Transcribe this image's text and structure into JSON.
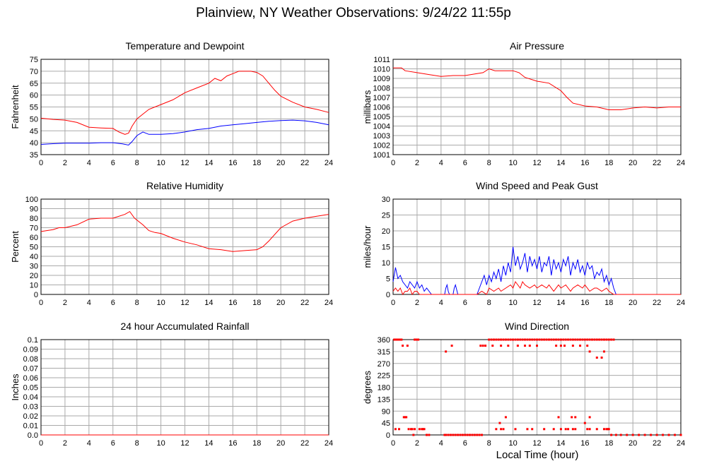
{
  "title": "Plainview, NY Weather Observations: 9/24/22 11:55p",
  "xlabel": "Local Time (hour)",
  "colors": {
    "red": "#ff0000",
    "blue": "#0000ff",
    "grid": "#aaaaaa"
  },
  "chart_data": [
    {
      "type": "line",
      "title": "Temperature and Dewpoint",
      "ylabel": "Fahrenheit",
      "xlim": [
        0,
        24
      ],
      "ylim": [
        35,
        75
      ],
      "xticks": [
        0,
        2,
        4,
        6,
        8,
        10,
        12,
        14,
        16,
        18,
        20,
        22,
        24
      ],
      "yticks": [
        35,
        40,
        45,
        50,
        55,
        60,
        65,
        70,
        75
      ],
      "grid": true,
      "series": [
        {
          "color": "#ff0000",
          "x": [
            0,
            1,
            2,
            3,
            4,
            5,
            6,
            6.5,
            7,
            7.3,
            7.6,
            8,
            8.5,
            9,
            9.5,
            10,
            11,
            12,
            13,
            14,
            14.5,
            15,
            15.5,
            16,
            16.5,
            17,
            17.5,
            18,
            18.5,
            19,
            19.5,
            20,
            21,
            22,
            23,
            24
          ],
          "y": [
            50.3,
            49.8,
            49.5,
            48.5,
            46.5,
            46.2,
            46,
            44.5,
            43.5,
            44,
            47,
            50,
            52,
            54,
            55,
            56,
            58,
            61,
            63,
            65,
            67,
            66,
            68,
            69,
            70,
            70,
            70,
            69.5,
            68,
            65,
            62,
            59.5,
            57,
            55,
            54,
            52.7
          ]
        },
        {
          "color": "#0000ff",
          "x": [
            0,
            1,
            2,
            3,
            4,
            5,
            6,
            6.8,
            7.3,
            7.6,
            8,
            8.5,
            9,
            10,
            11,
            12,
            13,
            14,
            15,
            16,
            17,
            18,
            19,
            20,
            21,
            22,
            23,
            24
          ],
          "y": [
            39.3,
            39.6,
            39.8,
            39.8,
            39.8,
            40,
            40,
            39.5,
            39,
            40.5,
            43,
            44.5,
            43.5,
            43.5,
            43.8,
            44.5,
            45.5,
            46,
            47,
            47.5,
            48,
            48.5,
            49,
            49.3,
            49.5,
            49.2,
            48.5,
            47.5
          ]
        }
      ]
    },
    {
      "type": "line",
      "title": "Air Pressure",
      "ylabel": "millibars",
      "xlim": [
        0,
        24
      ],
      "ylim": [
        1001,
        1011
      ],
      "xticks": [
        0,
        2,
        4,
        6,
        8,
        10,
        12,
        14,
        16,
        18,
        20,
        22,
        24
      ],
      "yticks": [
        1001,
        1002,
        1003,
        1004,
        1005,
        1006,
        1007,
        1008,
        1009,
        1010,
        1011
      ],
      "grid": true,
      "series": [
        {
          "color": "#ff0000",
          "x": [
            0,
            0.7,
            1,
            2,
            3,
            4,
            5,
            6,
            7,
            7.5,
            8,
            8.5,
            9,
            10,
            10.5,
            11,
            12,
            13,
            14,
            14.5,
            15,
            16,
            17,
            18,
            19,
            20,
            21,
            22,
            23,
            24
          ],
          "y": [
            1010.1,
            1010.1,
            1009.8,
            1009.6,
            1009.4,
            1009.2,
            1009.3,
            1009.3,
            1009.5,
            1009.6,
            1010,
            1009.8,
            1009.8,
            1009.8,
            1009.6,
            1009.1,
            1008.7,
            1008.5,
            1007.7,
            1007,
            1006.4,
            1006.1,
            1006,
            1005.7,
            1005.7,
            1005.9,
            1006,
            1005.9,
            1006,
            1006
          ]
        }
      ]
    },
    {
      "type": "line",
      "title": "Relative Humidity",
      "ylabel": "Percent",
      "xlim": [
        0,
        24
      ],
      "ylim": [
        0,
        100
      ],
      "xticks": [
        0,
        2,
        4,
        6,
        8,
        10,
        12,
        14,
        16,
        18,
        20,
        22,
        24
      ],
      "yticks": [
        0,
        10,
        20,
        30,
        40,
        50,
        60,
        70,
        80,
        90,
        100
      ],
      "grid": true,
      "series": [
        {
          "color": "#ff0000",
          "x": [
            0,
            1,
            1.5,
            2,
            3,
            4,
            5,
            6,
            7,
            7.4,
            7.8,
            8.5,
            9,
            9.5,
            10,
            11,
            12,
            13,
            14,
            15,
            16,
            17,
            18,
            18.5,
            19,
            20,
            21,
            22,
            23,
            24
          ],
          "y": [
            66,
            68,
            70,
            70,
            73,
            79,
            80,
            80,
            84,
            87,
            80,
            73,
            67,
            65,
            64,
            59,
            55,
            52,
            48,
            47,
            45,
            46,
            47,
            50,
            56,
            70,
            77,
            80,
            82,
            84
          ]
        }
      ]
    },
    {
      "type": "line",
      "title": "Wind Speed and Peak Gust",
      "ylabel": "miles/hour",
      "xlim": [
        0,
        24
      ],
      "ylim": [
        0,
        30
      ],
      "xticks": [
        0,
        2,
        4,
        6,
        8,
        10,
        12,
        14,
        16,
        18,
        20,
        22,
        24
      ],
      "yticks": [
        0,
        5,
        10,
        15,
        20,
        25,
        30
      ],
      "grid": true,
      "series": [
        {
          "color": "#0000ff",
          "x": [
            0,
            0.2,
            0.4,
            0.6,
            0.8,
            1,
            1.2,
            1.4,
            1.6,
            1.8,
            2,
            2.2,
            2.4,
            2.6,
            2.8,
            3,
            3.2,
            4.3,
            4.4,
            4.5,
            4.6,
            4.7,
            5,
            5.1,
            5.2,
            5.4,
            7,
            7.2,
            7.4,
            7.6,
            7.8,
            8,
            8.2,
            8.4,
            8.6,
            8.8,
            9,
            9.2,
            9.4,
            9.6,
            9.8,
            10,
            10.2,
            10.4,
            10.6,
            10.8,
            11,
            11.2,
            11.4,
            11.6,
            11.8,
            12,
            12.2,
            12.4,
            12.6,
            12.8,
            13,
            13.2,
            13.4,
            13.6,
            13.8,
            14,
            14.2,
            14.4,
            14.6,
            14.8,
            15,
            15.2,
            15.4,
            15.6,
            15.8,
            16,
            16.2,
            16.4,
            16.6,
            16.8,
            17,
            17.2,
            17.4,
            17.6,
            17.8,
            18,
            18.2,
            18.4,
            18.6,
            24
          ],
          "y": [
            4,
            8.5,
            5,
            6,
            4,
            3,
            2,
            4,
            3,
            2,
            4,
            2,
            3,
            1,
            2,
            1,
            0,
            0,
            2,
            3,
            1,
            0,
            0,
            2,
            3,
            0,
            0,
            2,
            4,
            6,
            3,
            6,
            4,
            7,
            5,
            8,
            4,
            9,
            6,
            10,
            7,
            15,
            9,
            12,
            8,
            10,
            13,
            7,
            12,
            9,
            11,
            8,
            12,
            7,
            10,
            9,
            12,
            6,
            11,
            8,
            10,
            7,
            11,
            9,
            12,
            6,
            10,
            8,
            11,
            7,
            9,
            6,
            10,
            8,
            9,
            5,
            7,
            6,
            8,
            4,
            6,
            3,
            5,
            2,
            0,
            0
          ]
        },
        {
          "color": "#ff0000",
          "x": [
            0,
            0.2,
            0.4,
            0.6,
            0.8,
            1,
            1.2,
            1.4,
            1.6,
            1.8,
            2,
            2.2,
            2.4,
            3,
            7,
            7.4,
            7.8,
            8,
            8.4,
            8.8,
            9,
            9.4,
            9.8,
            10,
            10.2,
            10.4,
            10.6,
            10.8,
            11,
            11.4,
            11.8,
            12,
            12.4,
            12.8,
            13,
            13.4,
            13.8,
            14,
            14.4,
            14.8,
            15,
            15.4,
            15.8,
            16,
            16.4,
            16.8,
            17,
            17.4,
            17.8,
            18,
            18.4,
            24
          ],
          "y": [
            1,
            2,
            1,
            2,
            0,
            1,
            1,
            2,
            0,
            1,
            1,
            0,
            0,
            0,
            0,
            1,
            0,
            2,
            1,
            2,
            1,
            2,
            3,
            2,
            4,
            3,
            2,
            4,
            3,
            2,
            3,
            2,
            3,
            2,
            3,
            1,
            3,
            2,
            3,
            1,
            2,
            3,
            2,
            3,
            1,
            2,
            2,
            1,
            2,
            1,
            0,
            0
          ]
        }
      ]
    },
    {
      "type": "line",
      "title": "24 hour Accumulated Rainfall",
      "ylabel": "Inches",
      "xlim": [
        0,
        24
      ],
      "ylim": [
        0,
        0.1
      ],
      "xticks": [
        0,
        2,
        4,
        6,
        8,
        10,
        12,
        14,
        16,
        18,
        20,
        22,
        24
      ],
      "yticks": [
        "0.0",
        "0.01",
        "0.02",
        "0.03",
        "0.04",
        "0.05",
        "0.06",
        "0.07",
        "0.08",
        "0.09",
        "0.1"
      ],
      "grid": true,
      "series": [
        {
          "color": "#ff0000",
          "x": [
            0,
            24
          ],
          "y": [
            0,
            0
          ]
        }
      ]
    },
    {
      "type": "scatter",
      "title": "Wind Direction",
      "ylabel": "degrees",
      "xlim": [
        0,
        24
      ],
      "ylim": [
        0,
        360
      ],
      "xticks": [
        0,
        2,
        4,
        6,
        8,
        10,
        12,
        14,
        16,
        18,
        20,
        22,
        24
      ],
      "yticks": [
        0,
        45,
        90,
        135,
        180,
        225,
        270,
        315,
        360
      ],
      "grid": true,
      "series": [
        {
          "color": "#ff0000",
          "x": [
            0.1,
            0.2,
            0.3,
            0.4,
            0.5,
            0.6,
            0.7,
            0.2,
            0.5,
            0.9,
            1.0,
            1.1,
            0.8,
            1.2,
            1.3,
            1.5,
            1.7,
            1.8,
            1.9,
            2.0,
            2.1,
            1.6,
            1.8,
            2.2,
            2.4,
            2.5,
            2.6,
            2.8,
            3.0,
            4.3,
            4.4,
            4.6,
            4.8,
            5.0,
            5.2,
            5.4,
            5.6,
            5.8,
            6.0,
            6.2,
            6.4,
            6.6,
            6.8,
            7.0,
            7.2,
            7.4,
            7.3,
            7.5,
            7.7,
            8.0,
            8.2,
            8.4,
            8.6,
            8.8,
            9.0,
            9.2,
            9.4,
            9.6,
            9.8,
            10.0,
            10.2,
            10.4,
            10.6,
            10.8,
            11.0,
            11.2,
            11.4,
            11.6,
            11.8,
            12.0,
            12.2,
            12.4,
            12.6,
            12.8,
            13.0,
            13.2,
            13.4,
            13.6,
            13.8,
            14.0,
            14.2,
            14.4,
            14.6,
            14.8,
            15.0,
            15.2,
            15.4,
            15.6,
            15.8,
            16.0,
            16.2,
            16.4,
            16.6,
            16.8,
            17.0,
            17.2,
            17.4,
            17.6,
            17.8,
            18.0,
            18.2,
            18.4,
            4.4,
            4.9,
            8.3,
            9.0,
            9.2,
            9.6,
            10.4,
            11.0,
            11.4,
            12.0,
            13.6,
            14.0,
            14.3,
            15.0,
            15.6,
            16.2,
            16.4,
            17.0,
            17.4,
            17.6,
            17.8,
            8.6,
            9.0,
            9.2,
            10.2,
            11.2,
            11.6,
            12.6,
            13.4,
            14.0,
            14.4,
            14.6,
            15.0,
            15.2,
            16.2,
            16.4,
            17.0,
            17.6,
            17.9,
            18.0,
            18.2,
            18.6,
            19.0,
            19.5,
            20.0,
            20.5,
            21.0,
            21.5,
            22.0,
            22.5,
            23.0,
            23.5,
            24.0,
            9.4,
            13.8,
            14.9,
            15.2,
            16.4,
            8.9,
            16.0
          ],
          "y": [
            360,
            360,
            360,
            360,
            360,
            360,
            360,
            22,
            22,
            67,
            67,
            67,
            337,
            337,
            22,
            22,
            0,
            360,
            360,
            360,
            360,
            22,
            22,
            22,
            22,
            22,
            22,
            0,
            0,
            0,
            0,
            0,
            0,
            0,
            0,
            0,
            0,
            0,
            0,
            0,
            0,
            0,
            0,
            0,
            0,
            0,
            337,
            337,
            337,
            360,
            360,
            360,
            360,
            360,
            360,
            360,
            360,
            360,
            360,
            360,
            360,
            360,
            360,
            360,
            360,
            360,
            360,
            360,
            360,
            360,
            360,
            360,
            360,
            360,
            360,
            360,
            360,
            360,
            360,
            360,
            360,
            360,
            360,
            360,
            360,
            360,
            360,
            360,
            360,
            360,
            360,
            360,
            360,
            360,
            360,
            360,
            360,
            360,
            360,
            360,
            360,
            360,
            315,
            337,
            337,
            337,
            360,
            337,
            337,
            337,
            337,
            337,
            337,
            337,
            337,
            337,
            337,
            337,
            315,
            292,
            292,
            315,
            22,
            22,
            22,
            22,
            22,
            22,
            22,
            22,
            22,
            22,
            22,
            22,
            22,
            22,
            22,
            22,
            22,
            22,
            22,
            22,
            0,
            0,
            0,
            0,
            0,
            0,
            0,
            0,
            0,
            0,
            0,
            0,
            0,
            67,
            67,
            67,
            67,
            67,
            45,
            45
          ]
        }
      ]
    }
  ]
}
